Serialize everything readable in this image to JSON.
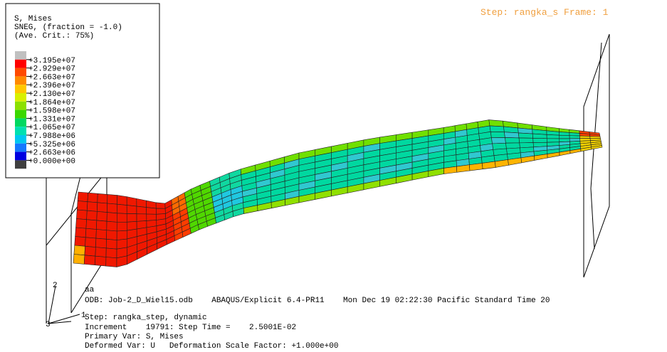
{
  "legend": {
    "title_lines": [
      "S, Mises",
      "SNEG, (fraction = -1.0)",
      "(Ave. Crit.: 75%)"
    ],
    "labels": [
      "+3.195e+07",
      "+2.929e+07",
      "+2.663e+07",
      "+2.396e+07",
      "+2.130e+07",
      "+1.864e+07",
      "+1.598e+07",
      "+1.331e+07",
      "+1.065e+07",
      "+7.988e+06",
      "+5.325e+06",
      "+2.663e+06",
      "+0.000e+00"
    ]
  },
  "step_label": "Step: rangka_s Frame: 1",
  "triad": {
    "y": "2",
    "x": "1",
    "z": "3"
  },
  "info_lines": [
    "aa",
    "ODB: Job-2_D_Wiel15.odb    ABAQUS/Explicit 6.4-PR11    Mon Dec 19 02:22:30 Pacific Standard Time 20",
    "Step: rangka_step, dynamic",
    "Increment    19791: Step Time =    2.5001E-02",
    "Primary Var: S, Mises",
    "Deformed Var: U   Deformation Scale Factor: +1.000e+00"
  ]
}
